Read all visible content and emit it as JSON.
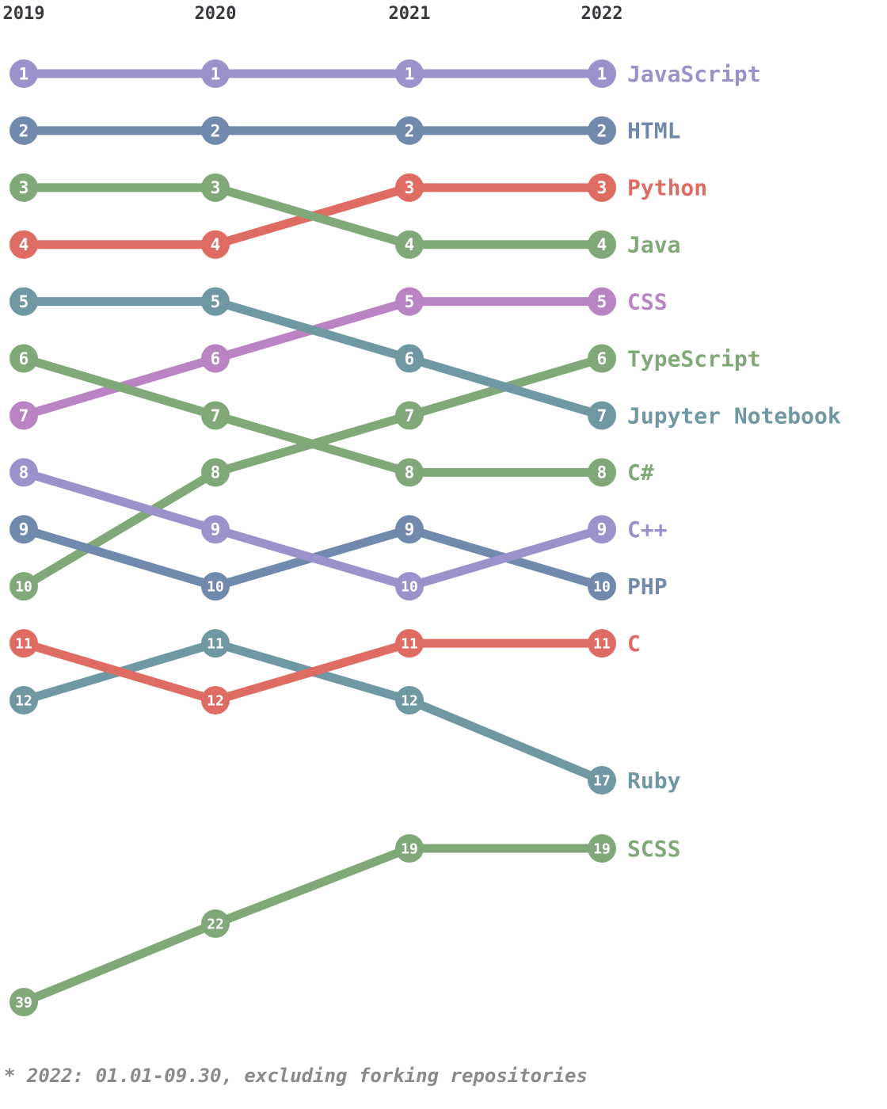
{
  "chart_data": {
    "type": "line",
    "subtype": "bump-rank-chart",
    "years": [
      "2019",
      "2020",
      "2021",
      "2022"
    ],
    "series": [
      {
        "id": "javascript",
        "name": "JavaScript",
        "color": "#9c92cb",
        "ranks": [
          1,
          1,
          1,
          1
        ]
      },
      {
        "id": "html",
        "name": "HTML",
        "color": "#7189ac",
        "ranks": [
          2,
          2,
          2,
          2
        ]
      },
      {
        "id": "python",
        "name": "Python",
        "color": "#df6c63",
        "ranks": [
          4,
          4,
          3,
          3
        ]
      },
      {
        "id": "java",
        "name": "Java",
        "color": "#81a878",
        "ranks": [
          3,
          3,
          4,
          4
        ]
      },
      {
        "id": "css",
        "name": "CSS",
        "color": "#b983c4",
        "ranks": [
          7,
          6,
          5,
          5
        ]
      },
      {
        "id": "typescript",
        "name": "TypeScript",
        "color": "#81a878",
        "ranks": [
          10,
          8,
          7,
          6
        ]
      },
      {
        "id": "jupyter-notebook",
        "name": "Jupyter Notebook",
        "color": "#6f98a2",
        "ranks": [
          5,
          5,
          6,
          7
        ]
      },
      {
        "id": "csharp",
        "name": "C#",
        "color": "#81a878",
        "ranks": [
          6,
          7,
          8,
          8
        ]
      },
      {
        "id": "cpp",
        "name": "C++",
        "color": "#9c92cb",
        "ranks": [
          8,
          9,
          10,
          9
        ]
      },
      {
        "id": "php",
        "name": "PHP",
        "color": "#7189ac",
        "ranks": [
          9,
          10,
          9,
          10
        ]
      },
      {
        "id": "c",
        "name": "C",
        "color": "#df6c63",
        "ranks": [
          11,
          12,
          11,
          11
        ]
      },
      {
        "id": "ruby",
        "name": "Ruby",
        "color": "#6f98a2",
        "ranks": [
          12,
          11,
          12,
          17
        ]
      },
      {
        "id": "scss",
        "name": "SCSS",
        "color": "#81a878",
        "ranks": [
          39,
          22,
          19,
          19
        ]
      }
    ],
    "footnote": "* 2022: 01.01-09.30, excluding forking repositories"
  }
}
